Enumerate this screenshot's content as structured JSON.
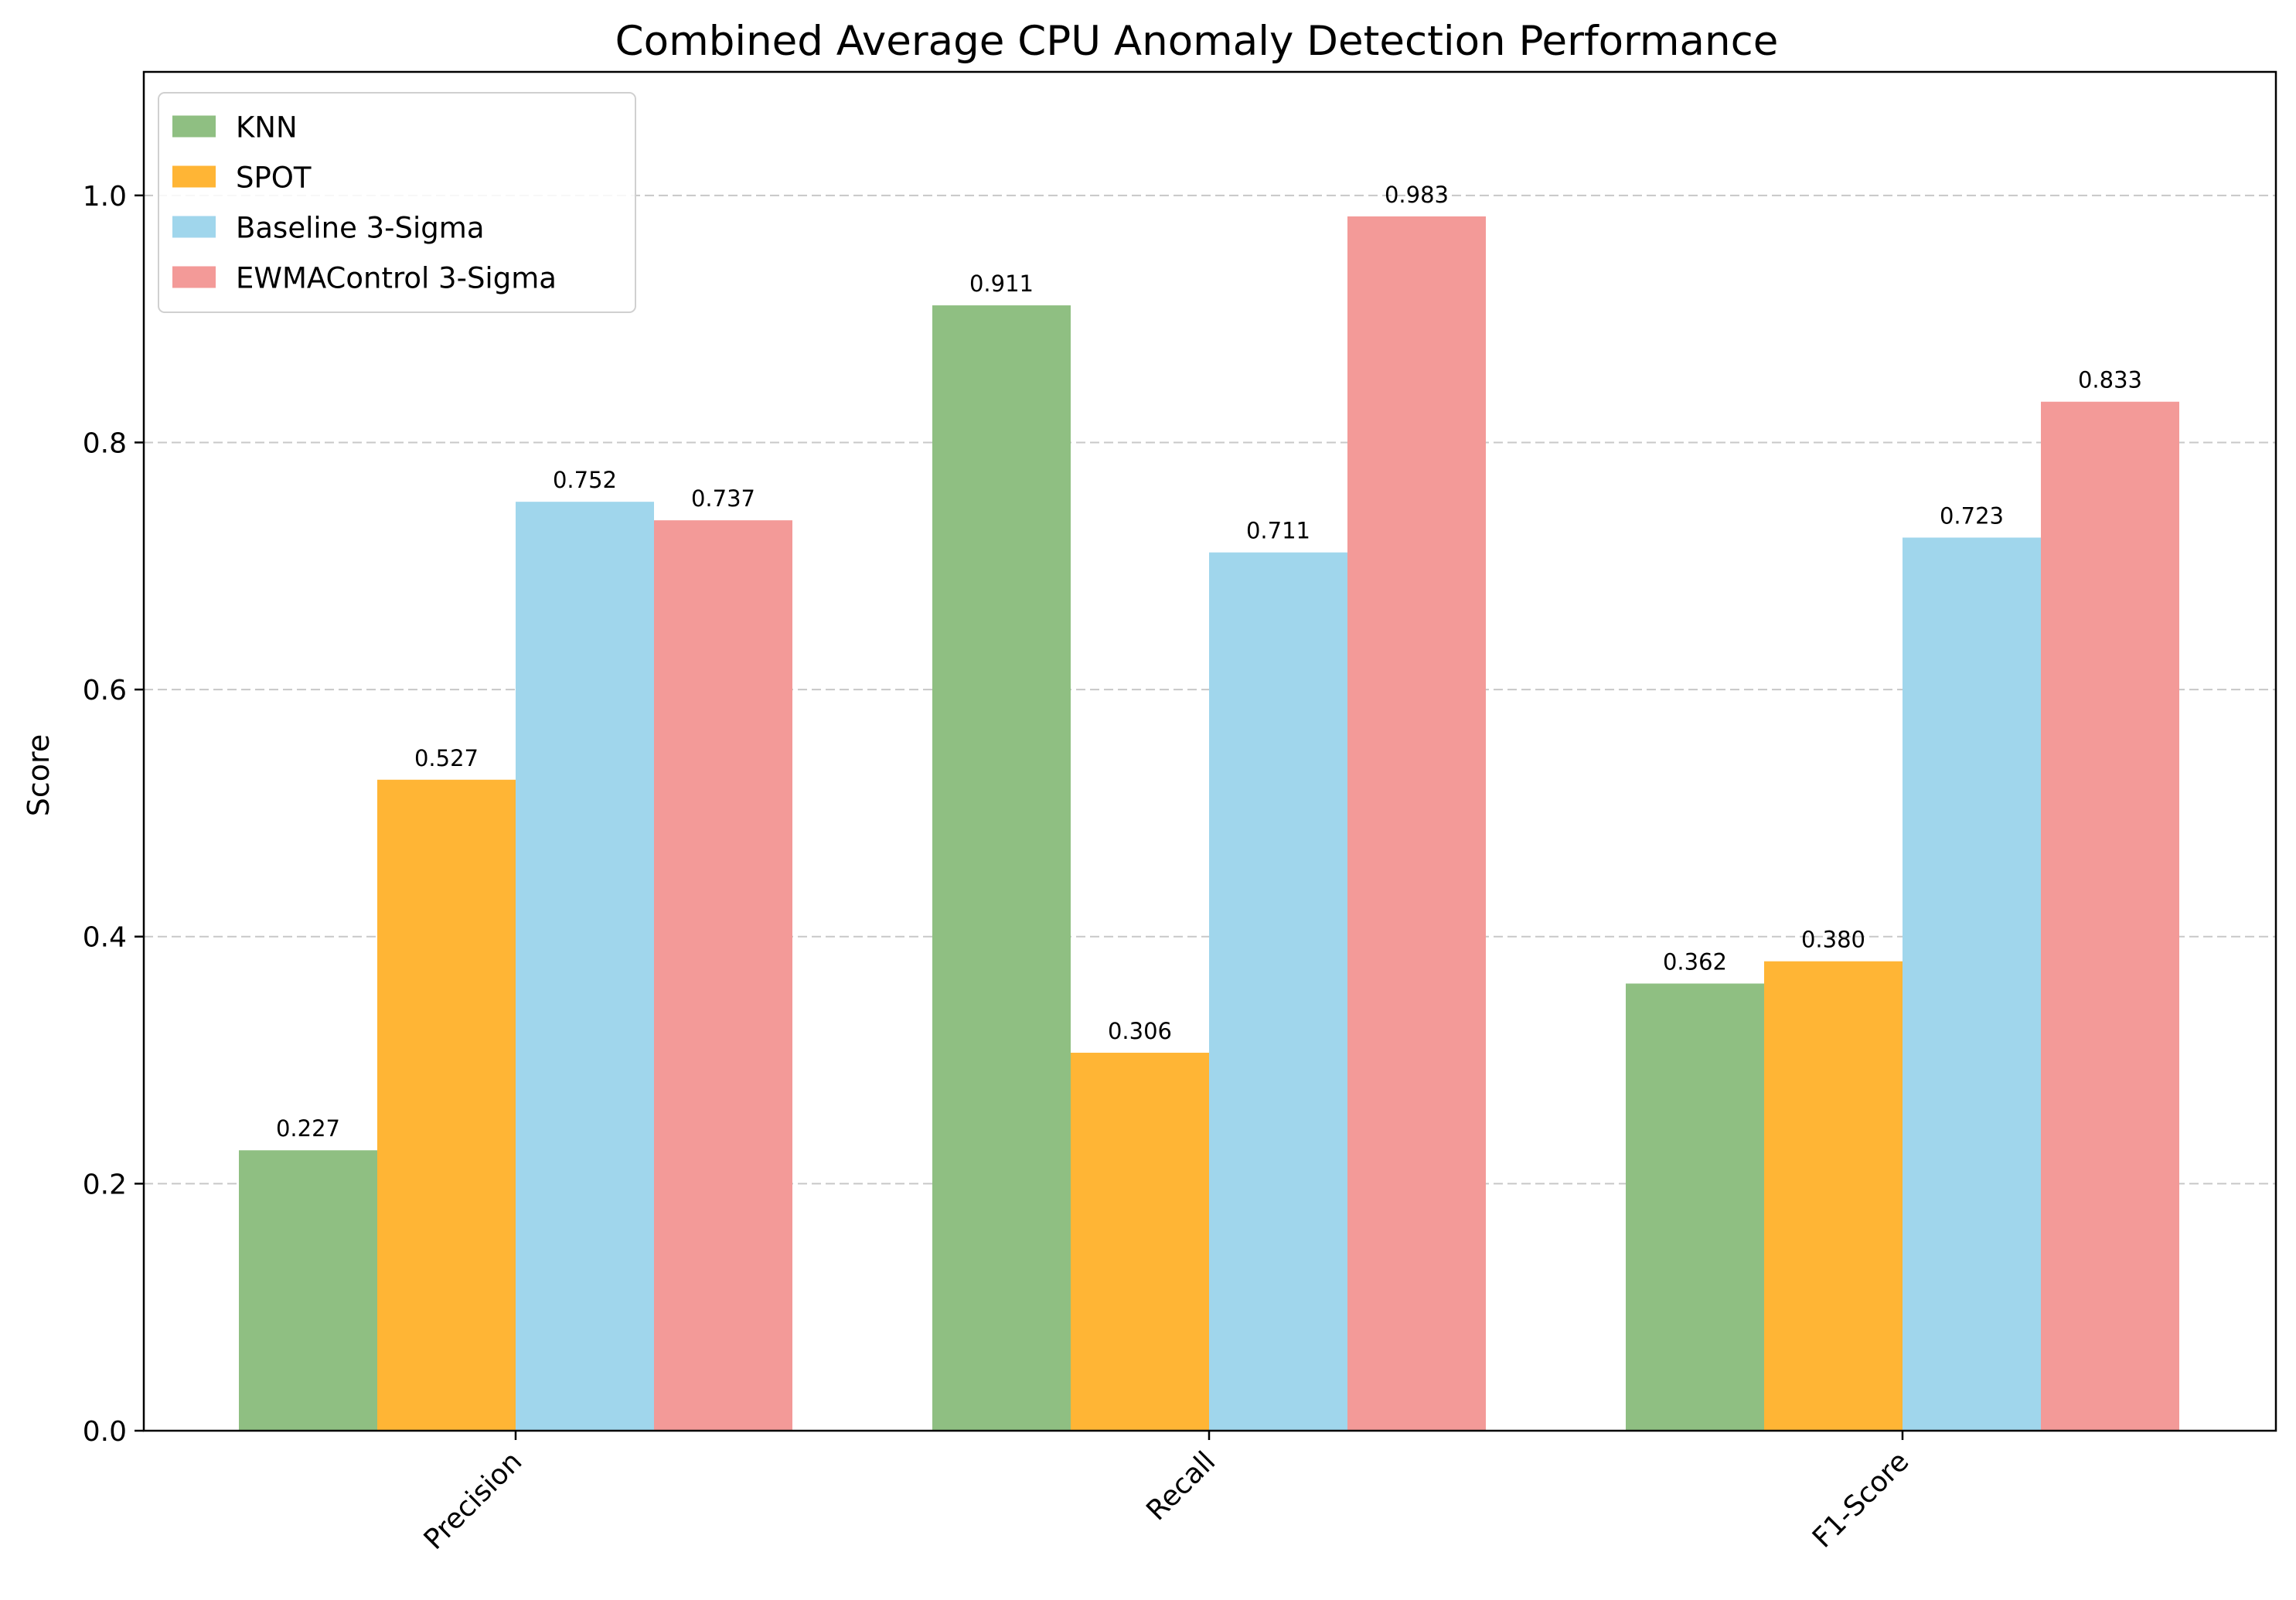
{
  "chart_data": {
    "type": "bar",
    "title": "Combined Average CPU Anomaly Detection Performance",
    "xlabel": "",
    "ylabel": "Score",
    "categories": [
      "Precision",
      "Recall",
      "F1-Score"
    ],
    "series": [
      {
        "name": "KNN",
        "color": "#8fbf82",
        "values": [
          0.227,
          0.911,
          0.362
        ]
      },
      {
        "name": "SPOT",
        "color": "#ffb535",
        "values": [
          0.527,
          0.306,
          0.38
        ]
      },
      {
        "name": "Baseline 3-Sigma",
        "color": "#a0d6ec",
        "values": [
          0.752,
          0.711,
          0.723
        ]
      },
      {
        "name": "EWMAControl 3-Sigma",
        "color": "#f39a98",
        "values": [
          0.737,
          0.983,
          0.833
        ]
      }
    ],
    "data_labels": [
      [
        "0.227",
        "0.911",
        "0.362"
      ],
      [
        "0.527",
        "0.306",
        "0.380"
      ],
      [
        "0.752",
        "0.711",
        "0.723"
      ],
      [
        "0.737",
        "0.983",
        "0.833"
      ]
    ],
    "ylim": [
      0,
      1.1
    ],
    "yticks": [
      0.0,
      0.2,
      0.4,
      0.6,
      0.8,
      1.0
    ],
    "ytick_labels": [
      "0.0",
      "0.2",
      "0.4",
      "0.6",
      "0.8",
      "1.0"
    ],
    "grid": "y-dashed",
    "legend_position": "top-left"
  }
}
